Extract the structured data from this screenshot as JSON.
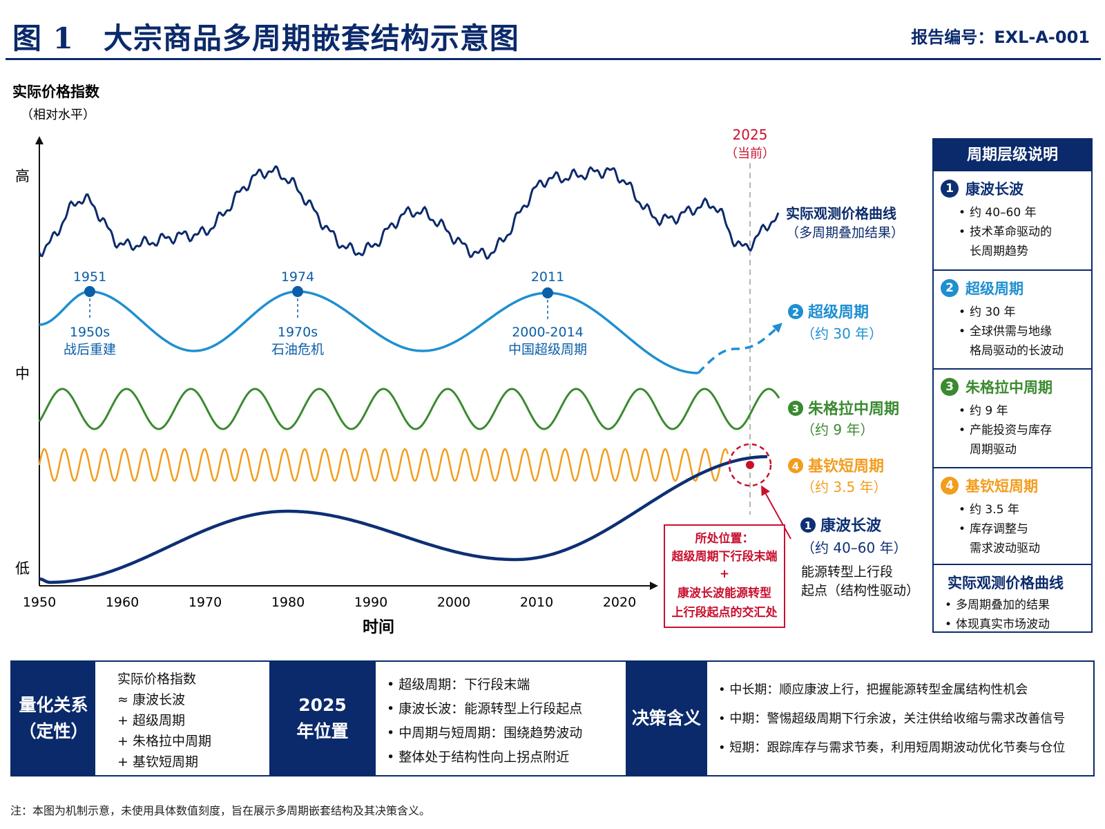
{
  "header": {
    "title": "图 1　大宗商品多周期嵌套结构示意图",
    "report_no": "报告编号：EXL-A-001"
  },
  "colors": {
    "navy": "#0b2a6b",
    "super_cycle": "#1e8fd1",
    "juglar": "#3a8a2f",
    "kitchin": "#f29d1f",
    "kondratiev": "#0d2f74",
    "highlight": "#c8102e"
  },
  "chart_data": {
    "type": "diagram",
    "y_axis": {
      "title": "实际价格指数",
      "subtitle": "（相对水平）",
      "levels": [
        "高",
        "中",
        "低"
      ]
    },
    "x_axis": {
      "title": "时间",
      "ticks": [
        "1950",
        "1960",
        "1970",
        "1980",
        "1990",
        "2000",
        "2010",
        "2020"
      ],
      "range": [
        1950,
        2035
      ]
    },
    "current": {
      "year_label": "2025",
      "sub_label": "（当前）",
      "year": 2025
    },
    "observed_line": {
      "label_1": "实际观测价格曲线",
      "label_2": "（多周期叠加结果）"
    },
    "super_cycle": {
      "num": "2",
      "label": "超级周期",
      "period_label": "（约 30 年）",
      "peaks": [
        {
          "year": "1951",
          "era": "1950s",
          "event": "战后重建"
        },
        {
          "year": "1974",
          "era": "1970s",
          "event": "石油危机"
        },
        {
          "year": "2011",
          "era": "2000-2014",
          "event": "中国超级周期"
        }
      ]
    },
    "juglar": {
      "num": "3",
      "label": "朱格拉中周期",
      "period_label": "（约 9 年）"
    },
    "kitchin": {
      "num": "4",
      "label": "基钦短周期",
      "period_label": "（约 3.5 年）"
    },
    "kondratiev": {
      "num": "1",
      "label": "康波长波",
      "period_label": "（约 40–60 年）",
      "note_1": "能源转型上行段",
      "note_2": "起点（结构性驱动）"
    },
    "position_box": {
      "title": "所处位置：",
      "line_1": "超级周期下行段末端",
      "plus": "+",
      "line_2": "康波长波能源转型",
      "line_3": "上行段起点的交汇处"
    }
  },
  "legend": {
    "title": "周期层级说明",
    "items": [
      {
        "num": "1",
        "title": "康波长波",
        "bullets": [
          "约 40–60 年",
          "技术革命驱动的",
          "长周期趋势"
        ],
        "color": "#0d2f74"
      },
      {
        "num": "2",
        "title": "超级周期",
        "bullets": [
          "约 30 年",
          "全球供需与地缘",
          "格局驱动的长波动"
        ],
        "color": "#1e8fd1"
      },
      {
        "num": "3",
        "title": "朱格拉中周期",
        "bullets": [
          "约 9 年",
          "产能投资与库存",
          "周期驱动"
        ],
        "color": "#3a8a2f"
      },
      {
        "num": "4",
        "title": "基钦短周期",
        "bullets": [
          "约 3.5 年",
          "库存调整与",
          "需求波动驱动"
        ],
        "color": "#f29d1f"
      }
    ],
    "observed": {
      "title": "实际观测价格曲线",
      "bullets": [
        "多周期叠加的结果",
        "体现真实市场波动"
      ]
    }
  },
  "bottom": {
    "quant": {
      "head_1": "量化关系",
      "head_2": "（定性）",
      "lines": [
        "实际价格指数",
        "≈ 康波长波",
        "+ 超级周期",
        "+ 朱格拉中周期",
        "+ 基钦短周期"
      ]
    },
    "position": {
      "head_1": "2025",
      "head_2": "年位置",
      "lines": [
        "超级周期：下行段末端",
        "康波长波：能源转型上行段起点",
        "中周期与短周期：围绕趋势波动",
        "整体处于结构性向上拐点附近"
      ]
    },
    "decision": {
      "head": "决策含义",
      "lines": [
        "中长期：顺应康波上行，把握能源转型金属结构性机会",
        "中期：警惕超级周期下行余波，关注供给收缩与需求改善信号",
        "短期：跟踪库存与需求节奏，利用短周期波动优化节奏与仓位"
      ]
    }
  },
  "footnote": "注：本图为机制示意，未使用具体数值刻度，旨在展示多周期嵌套结构及其决策含义。"
}
